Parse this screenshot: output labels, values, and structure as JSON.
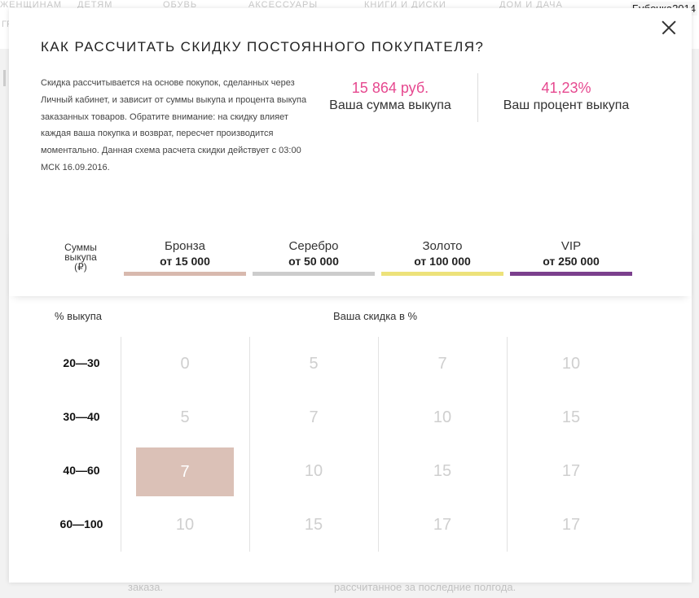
{
  "background": {
    "nav_fragments": [
      "ЖЕНЩИНАМ",
      "ДЕТЯМ",
      "ОБУВЬ",
      "АКСЕССУАРЫ",
      "КНИГИ И ДИСКИ",
      "ДОМ И ДАЧА"
    ],
    "left_letters": [
      "ГР"
    ],
    "right_fragments": [
      " ",
      "",
      "",
      "",
      "",
      ""
    ],
    "bottom_left": "заказа.",
    "bottom_right": "рассчитанное за последние полгода.",
    "username": "Бубочка2014"
  },
  "modal": {
    "title": "КАК РАССЧИТАТЬ СКИДКУ ПОСТОЯННОГО ПОКУПАТЕЛЯ?",
    "description": "Скидка рассчитывается на основе покупок, сделанных через Личный кабинет, и зависит от суммы выкупа и процента выкупа заказанных товаров. Обратите внимание: на скидку влияет каждая ваша покупка и возврат, пересчет производится моментально. Данная схема расчета скидки действует с 03:00 МСК 16.09.2016.",
    "purchase_sum": {
      "value": "15 864 руб.",
      "label": "Ваша сумма выкупа"
    },
    "purchase_percent": {
      "value": "41,23%",
      "label": "Ваш процент выкупа"
    },
    "accent_color": "#e6488f",
    "tiers_label": {
      "line1": "Суммы",
      "line2": "выкупа",
      "line3": "(₽)"
    },
    "tiers": [
      {
        "name": "Бронза",
        "threshold": "от 15 000",
        "color": "#d8b9ae"
      },
      {
        "name": "Серебро",
        "threshold": "от 50 000",
        "color": "#cccccc"
      },
      {
        "name": "Золото",
        "threshold": "от 100 000",
        "color": "#ede27a"
      },
      {
        "name": "VIP",
        "threshold": "от 250 000",
        "color": "#7b3f8d"
      }
    ],
    "percent_header": "% выкупа",
    "discount_header": "Ваша скидка в %",
    "rows": [
      {
        "label": "20—30",
        "values": [
          "0",
          "5",
          "7",
          "10"
        ]
      },
      {
        "label": "30—40",
        "values": [
          "5",
          "7",
          "10",
          "15"
        ]
      },
      {
        "label": "40—60",
        "values": [
          "7",
          "10",
          "15",
          "17"
        ]
      },
      {
        "label": "60—100",
        "values": [
          "10",
          "15",
          "17",
          "17"
        ]
      }
    ],
    "active_cell": {
      "row": 2,
      "col": 0,
      "color": "#dbc1b7"
    }
  }
}
